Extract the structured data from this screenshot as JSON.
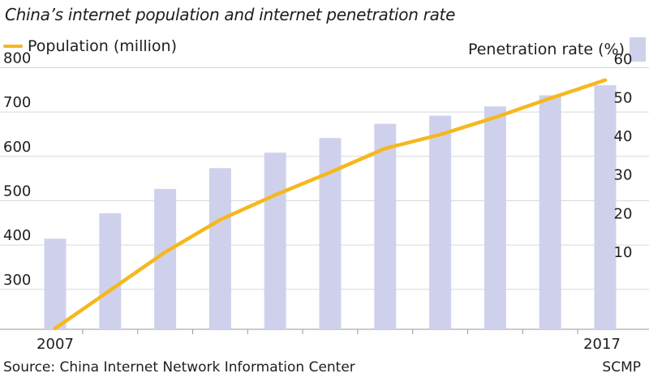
{
  "chart_data": {
    "type": "bar+line",
    "title": "China’s internet population and internet penetration rate",
    "x": [
      2007,
      2008,
      2009,
      2010,
      2011,
      2012,
      2013,
      2014,
      2015,
      2016,
      2017
    ],
    "x_tick_labels": [
      "2007",
      "2017"
    ],
    "series": [
      {
        "name": "Population (million)",
        "type": "line",
        "axis": "left",
        "color": "#f5b81d",
        "values": [
          212,
          298,
          384,
          457,
          513,
          564,
          618,
          649,
          688,
          731,
          772
        ]
      },
      {
        "name": "Penetration rate (%)",
        "type": "bar",
        "axis": "right",
        "color": "#cfd1ec",
        "values": [
          16.0,
          22.6,
          28.9,
          34.3,
          38.3,
          42.1,
          45.8,
          47.9,
          50.3,
          53.2,
          55.8
        ]
      }
    ],
    "left_axis": {
      "ticks": [
        "300",
        "400",
        "500",
        "600",
        "700",
        "800"
      ],
      "ylim": [
        210,
        810
      ]
    },
    "right_axis": {
      "ticks": [
        "10",
        "20",
        "30",
        "40",
        "50",
        "60"
      ],
      "ylim": [
        -7.5,
        61.5
      ]
    },
    "grid": "horizontal",
    "source": "Source: China Internet Network Information Center",
    "brand": "SCMP"
  }
}
